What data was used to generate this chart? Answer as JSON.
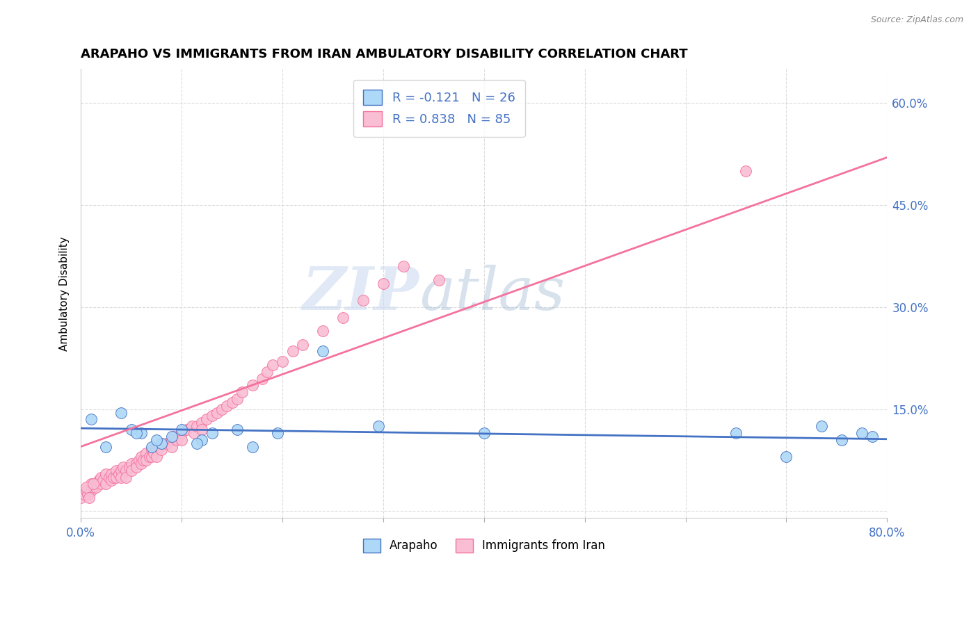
{
  "title": "ARAPAHO VS IMMIGRANTS FROM IRAN AMBULATORY DISABILITY CORRELATION CHART",
  "source": "Source: ZipAtlas.com",
  "ylabel": "Ambulatory Disability",
  "xmin": 0.0,
  "xmax": 0.8,
  "ymin": -0.01,
  "ymax": 0.65,
  "arapaho_R": -0.121,
  "arapaho_N": 26,
  "iran_R": 0.838,
  "iran_N": 85,
  "arapaho_color": "#ADD8F7",
  "iran_color": "#F9BDD4",
  "arapaho_line_color": "#4472C4",
  "iran_line_color": "#F4729C",
  "legend_label_arapaho": "Arapaho",
  "legend_label_iran": "Immigrants from Iran",
  "watermark_zip": "ZIP",
  "watermark_atlas": "atlas",
  "arapaho_scatter_x": [
    0.01,
    0.04,
    0.05,
    0.06,
    0.07,
    0.08,
    0.09,
    0.1,
    0.12,
    0.13,
    0.155,
    0.17,
    0.195,
    0.24,
    0.295,
    0.4,
    0.65,
    0.7,
    0.735,
    0.755,
    0.775,
    0.785,
    0.025,
    0.055,
    0.075,
    0.115
  ],
  "arapaho_scatter_y": [
    0.135,
    0.145,
    0.12,
    0.115,
    0.095,
    0.1,
    0.11,
    0.12,
    0.105,
    0.115,
    0.12,
    0.095,
    0.115,
    0.235,
    0.125,
    0.115,
    0.115,
    0.08,
    0.125,
    0.105,
    0.115,
    0.11,
    0.095,
    0.115,
    0.105,
    0.1
  ],
  "iran_scatter_x": [
    0.0,
    0.003,
    0.005,
    0.007,
    0.01,
    0.01,
    0.012,
    0.015,
    0.015,
    0.018,
    0.02,
    0.02,
    0.022,
    0.025,
    0.025,
    0.028,
    0.03,
    0.03,
    0.032,
    0.035,
    0.035,
    0.038,
    0.04,
    0.04,
    0.042,
    0.045,
    0.045,
    0.048,
    0.05,
    0.05,
    0.055,
    0.055,
    0.058,
    0.06,
    0.06,
    0.062,
    0.065,
    0.065,
    0.068,
    0.07,
    0.07,
    0.072,
    0.075,
    0.075,
    0.078,
    0.08,
    0.08,
    0.085,
    0.09,
    0.09,
    0.092,
    0.095,
    0.1,
    0.1,
    0.105,
    0.11,
    0.112,
    0.115,
    0.12,
    0.12,
    0.125,
    0.13,
    0.135,
    0.14,
    0.145,
    0.15,
    0.155,
    0.16,
    0.17,
    0.18,
    0.185,
    0.19,
    0.2,
    0.21,
    0.22,
    0.24,
    0.26,
    0.28,
    0.3,
    0.32,
    0.355,
    0.66,
    0.005,
    0.008,
    0.012
  ],
  "iran_scatter_y": [
    0.02,
    0.025,
    0.03,
    0.025,
    0.04,
    0.03,
    0.035,
    0.04,
    0.035,
    0.045,
    0.05,
    0.04,
    0.045,
    0.055,
    0.04,
    0.05,
    0.055,
    0.045,
    0.05,
    0.06,
    0.05,
    0.055,
    0.06,
    0.05,
    0.065,
    0.06,
    0.05,
    0.065,
    0.07,
    0.06,
    0.07,
    0.065,
    0.075,
    0.08,
    0.07,
    0.075,
    0.085,
    0.075,
    0.08,
    0.09,
    0.08,
    0.085,
    0.09,
    0.08,
    0.095,
    0.1,
    0.09,
    0.1,
    0.105,
    0.095,
    0.11,
    0.105,
    0.115,
    0.105,
    0.12,
    0.125,
    0.115,
    0.125,
    0.13,
    0.12,
    0.135,
    0.14,
    0.145,
    0.15,
    0.155,
    0.16,
    0.165,
    0.175,
    0.185,
    0.195,
    0.205,
    0.215,
    0.22,
    0.235,
    0.245,
    0.265,
    0.285,
    0.31,
    0.335,
    0.36,
    0.34,
    0.5,
    0.035,
    0.02,
    0.04
  ],
  "arapaho_trend_x0": 0.0,
  "arapaho_trend_x1": 0.8,
  "arapaho_trend_y0": 0.122,
  "arapaho_trend_y1": 0.106,
  "iran_trend_x0": 0.0,
  "iran_trend_x1": 0.8,
  "iran_trend_y0": 0.095,
  "iran_trend_y1": 0.52
}
